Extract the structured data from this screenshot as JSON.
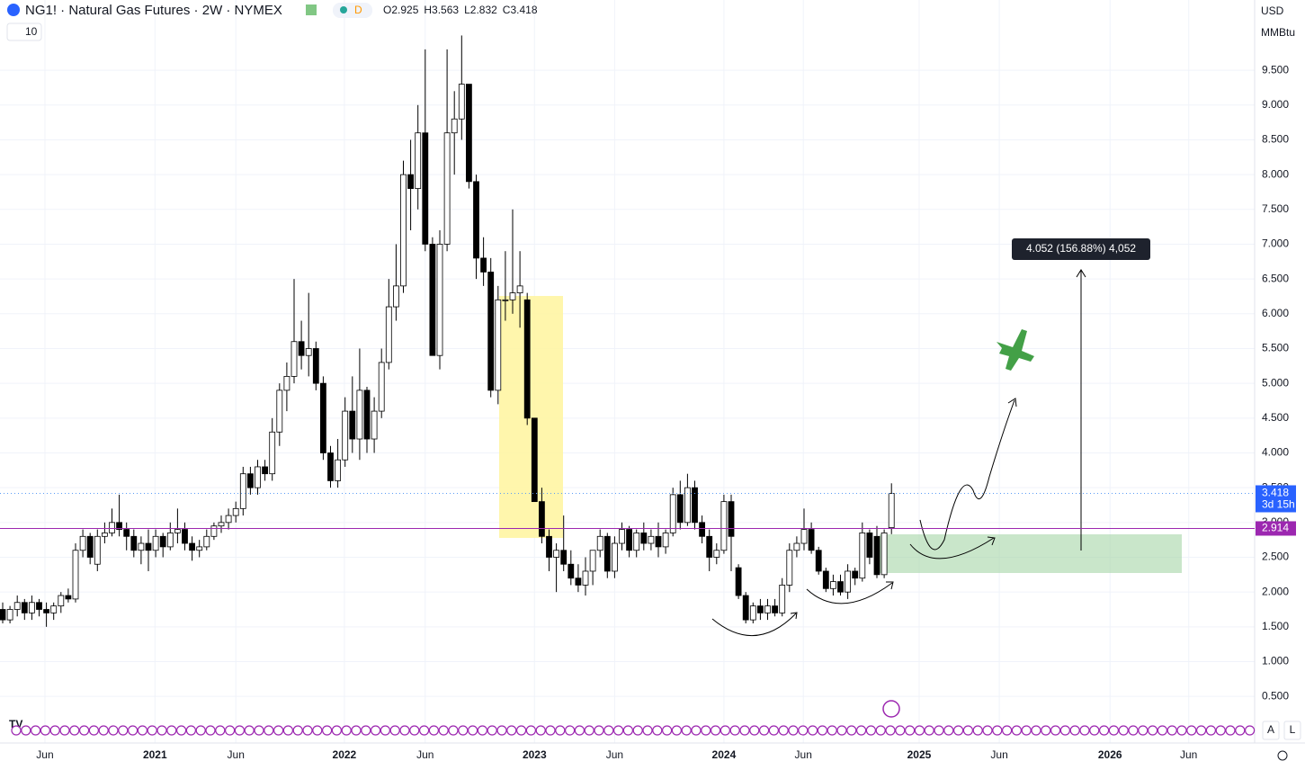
{
  "chart_data": {
    "type": "candlestick",
    "title": "NG1! · Natural Gas Futures · 2W · NYMEX",
    "badge": "D",
    "interval": "10",
    "ohlc_letters": [
      "O",
      "H",
      "L",
      "C"
    ],
    "currency": "USD",
    "unit": "MMBtu",
    "axis_buttons": [
      "A",
      "L"
    ],
    "countdown": "3d 15h",
    "hline": {
      "value": 2.914,
      "color": "#9c27b0"
    },
    "measure_label": "4.052 (156.88%) 4,052",
    "up_color": "#ffffff",
    "down_color": "#000000",
    "ohlc": [
      [
        1.75,
        1.85,
        1.55,
        1.6
      ],
      [
        1.6,
        1.8,
        1.55,
        1.75
      ],
      [
        1.75,
        1.95,
        1.65,
        1.85
      ],
      [
        1.85,
        1.9,
        1.6,
        1.7
      ],
      [
        1.7,
        1.95,
        1.6,
        1.85
      ],
      [
        1.85,
        1.9,
        1.65,
        1.75
      ],
      [
        1.75,
        1.85,
        1.5,
        1.7
      ],
      [
        1.7,
        1.85,
        1.6,
        1.8
      ],
      [
        1.8,
        2.0,
        1.7,
        1.95
      ],
      [
        1.95,
        2.05,
        1.85,
        1.9
      ],
      [
        1.9,
        2.7,
        1.85,
        2.6
      ],
      [
        2.6,
        2.9,
        2.5,
        2.8
      ],
      [
        2.8,
        2.85,
        2.4,
        2.5
      ],
      [
        2.4,
        2.9,
        2.3,
        2.8
      ],
      [
        2.8,
        3.0,
        2.7,
        2.85
      ],
      [
        2.85,
        3.2,
        2.8,
        3.0
      ],
      [
        3.0,
        3.4,
        2.8,
        2.9
      ],
      [
        2.9,
        3.0,
        2.6,
        2.8
      ],
      [
        2.8,
        2.9,
        2.5,
        2.6
      ],
      [
        2.6,
        2.8,
        2.4,
        2.7
      ],
      [
        2.7,
        2.9,
        2.3,
        2.6
      ],
      [
        2.6,
        2.9,
        2.5,
        2.8
      ],
      [
        2.8,
        2.85,
        2.5,
        2.65
      ],
      [
        2.65,
        3.0,
        2.6,
        2.85
      ],
      [
        2.85,
        3.2,
        2.7,
        2.9
      ],
      [
        2.9,
        3.0,
        2.6,
        2.7
      ],
      [
        2.7,
        2.8,
        2.45,
        2.6
      ],
      [
        2.6,
        2.75,
        2.5,
        2.65
      ],
      [
        2.65,
        2.9,
        2.6,
        2.8
      ],
      [
        2.8,
        3.0,
        2.75,
        2.95
      ],
      [
        2.95,
        3.1,
        2.85,
        3.0
      ],
      [
        3.0,
        3.2,
        2.9,
        3.1
      ],
      [
        3.1,
        3.3,
        3.0,
        3.2
      ],
      [
        3.2,
        3.8,
        3.1,
        3.7
      ],
      [
        3.7,
        3.8,
        3.4,
        3.5
      ],
      [
        3.5,
        3.9,
        3.4,
        3.8
      ],
      [
        3.8,
        3.9,
        3.6,
        3.7
      ],
      [
        3.7,
        4.5,
        3.6,
        4.3
      ],
      [
        4.3,
        5.0,
        4.1,
        4.9
      ],
      [
        4.9,
        5.3,
        4.6,
        5.1
      ],
      [
        5.1,
        6.5,
        5.0,
        5.6
      ],
      [
        5.6,
        5.9,
        5.2,
        5.4
      ],
      [
        5.4,
        6.3,
        5.1,
        5.5
      ],
      [
        5.5,
        5.6,
        4.9,
        5.0
      ],
      [
        5.0,
        5.1,
        3.9,
        4.0
      ],
      [
        4.0,
        4.1,
        3.5,
        3.6
      ],
      [
        3.6,
        4.2,
        3.5,
        3.9
      ],
      [
        3.9,
        4.8,
        3.8,
        4.6
      ],
      [
        4.6,
        5.1,
        4.0,
        4.2
      ],
      [
        4.2,
        5.5,
        3.9,
        4.9
      ],
      [
        4.9,
        4.95,
        4.0,
        4.2
      ],
      [
        4.2,
        4.8,
        4.0,
        4.6
      ],
      [
        4.6,
        5.5,
        4.5,
        5.3
      ],
      [
        5.3,
        6.5,
        5.2,
        6.1
      ],
      [
        6.1,
        7.0,
        5.9,
        6.4
      ],
      [
        6.4,
        8.2,
        6.3,
        8.0
      ],
      [
        8.0,
        8.5,
        7.2,
        7.8
      ],
      [
        7.8,
        9.0,
        7.5,
        8.6
      ],
      [
        8.6,
        9.8,
        6.9,
        7.0
      ],
      [
        7.0,
        7.1,
        5.4,
        5.4
      ],
      [
        5.4,
        7.2,
        5.2,
        7.0
      ],
      [
        7.0,
        9.8,
        6.9,
        8.6
      ],
      [
        8.6,
        9.2,
        8.0,
        8.8
      ],
      [
        8.8,
        10.0,
        8.5,
        9.3
      ],
      [
        9.3,
        9.3,
        7.8,
        7.9
      ],
      [
        7.9,
        8.0,
        6.5,
        6.8
      ],
      [
        6.8,
        7.1,
        6.4,
        6.6
      ],
      [
        6.6,
        6.8,
        4.8,
        4.9
      ],
      [
        4.9,
        6.4,
        4.7,
        6.2
      ],
      [
        6.2,
        6.9,
        5.9,
        6.2
      ],
      [
        6.2,
        7.5,
        6.0,
        6.3
      ],
      [
        6.3,
        6.9,
        5.8,
        6.4
      ],
      [
        6.2,
        6.3,
        4.4,
        4.5
      ],
      [
        4.5,
        4.5,
        3.3,
        3.3
      ],
      [
        3.3,
        3.5,
        2.7,
        2.8
      ],
      [
        2.8,
        2.9,
        2.3,
        2.5
      ],
      [
        2.5,
        2.7,
        2.0,
        2.6
      ],
      [
        2.6,
        3.1,
        2.3,
        2.4
      ],
      [
        2.4,
        2.6,
        2.1,
        2.2
      ],
      [
        2.2,
        2.4,
        2.0,
        2.1
      ],
      [
        2.1,
        2.5,
        1.95,
        2.3
      ],
      [
        2.3,
        2.6,
        2.1,
        2.6
      ],
      [
        2.6,
        2.9,
        2.5,
        2.8
      ],
      [
        2.8,
        2.85,
        2.2,
        2.3
      ],
      [
        2.3,
        2.8,
        2.2,
        2.7
      ],
      [
        2.7,
        3.0,
        2.6,
        2.9
      ],
      [
        2.9,
        2.95,
        2.5,
        2.6
      ],
      [
        2.6,
        2.9,
        2.5,
        2.85
      ],
      [
        2.85,
        3.0,
        2.6,
        2.7
      ],
      [
        2.7,
        2.9,
        2.6,
        2.8
      ],
      [
        2.8,
        3.0,
        2.5,
        2.65
      ],
      [
        2.65,
        2.9,
        2.55,
        2.85
      ],
      [
        2.85,
        3.5,
        2.8,
        3.4
      ],
      [
        3.4,
        3.6,
        2.9,
        3.0
      ],
      [
        3.0,
        3.7,
        2.95,
        3.5
      ],
      [
        3.5,
        3.6,
        2.9,
        3.0
      ],
      [
        3.0,
        3.1,
        2.7,
        2.8
      ],
      [
        2.8,
        2.9,
        2.3,
        2.5
      ],
      [
        2.5,
        2.7,
        2.4,
        2.6
      ],
      [
        2.6,
        3.4,
        2.55,
        3.3
      ],
      [
        3.3,
        3.4,
        2.3,
        2.8
      ],
      [
        2.35,
        2.4,
        1.9,
        1.95
      ],
      [
        1.95,
        2.0,
        1.55,
        1.6
      ],
      [
        1.6,
        1.85,
        1.55,
        1.8
      ],
      [
        1.8,
        1.9,
        1.6,
        1.7
      ],
      [
        1.7,
        1.9,
        1.6,
        1.8
      ],
      [
        1.8,
        1.9,
        1.65,
        1.7
      ],
      [
        1.7,
        2.2,
        1.65,
        2.1
      ],
      [
        2.1,
        2.7,
        2.0,
        2.6
      ],
      [
        2.6,
        2.8,
        2.5,
        2.7
      ],
      [
        2.7,
        3.2,
        2.6,
        2.9
      ],
      [
        2.9,
        3.0,
        2.55,
        2.6
      ],
      [
        2.6,
        2.65,
        2.25,
        2.3
      ],
      [
        2.3,
        2.35,
        2.0,
        2.05
      ],
      [
        2.05,
        2.25,
        1.95,
        2.15
      ],
      [
        2.15,
        2.25,
        1.95,
        2.0
      ],
      [
        2.0,
        2.4,
        1.9,
        2.3
      ],
      [
        2.3,
        2.35,
        2.1,
        2.2
      ],
      [
        2.2,
        3.0,
        2.15,
        2.85
      ],
      [
        2.85,
        2.9,
        2.4,
        2.5
      ],
      [
        2.8,
        2.95,
        2.2,
        2.25
      ],
      [
        2.25,
        2.9,
        2.2,
        2.85
      ],
      [
        2.925,
        3.563,
        2.832,
        3.418
      ]
    ],
    "xlim": [
      -0.37,
      171.85
    ],
    "xticks": [
      {
        "value": 5.8,
        "label": "Jun"
      },
      {
        "value": 20.9,
        "label": "2021"
      },
      {
        "value": 32.0,
        "label": "Jun"
      },
      {
        "value": 46.9,
        "label": "2022"
      },
      {
        "value": 58.0,
        "label": "Jun"
      },
      {
        "value": 73.0,
        "label": "2023"
      },
      {
        "value": 84.0,
        "label": "Jun"
      },
      {
        "value": 99.0,
        "label": "2024"
      },
      {
        "value": 109.9,
        "label": "Jun"
      },
      {
        "value": 125.8,
        "label": "2025"
      },
      {
        "value": 136.8,
        "label": "Jun"
      },
      {
        "value": 152.0,
        "label": "2026"
      },
      {
        "value": 162.8,
        "label": "Jun"
      }
    ],
    "ylim": [
      -0.17,
      10.51
    ],
    "yticks": [
      {
        "value": 0.5,
        "label": "0.500"
      },
      {
        "value": 1,
        "label": "1.000"
      },
      {
        "value": 1.5,
        "label": "1.500"
      },
      {
        "value": 2,
        "label": "2.000"
      },
      {
        "value": 2.5,
        "label": "2.500"
      },
      {
        "value": 3,
        "label": "3.000"
      },
      {
        "value": 3.5,
        "label": "3.500"
      },
      {
        "value": 4,
        "label": "4.000"
      },
      {
        "value": 4.5,
        "label": "4.500"
      },
      {
        "value": 5,
        "label": "5.000"
      },
      {
        "value": 5.5,
        "label": "5.500"
      },
      {
        "value": 6,
        "label": "6.000"
      },
      {
        "value": 6.5,
        "label": "6.500"
      },
      {
        "value": 7,
        "label": "7.000"
      },
      {
        "value": 7.5,
        "label": "7.500"
      },
      {
        "value": 8,
        "label": "8.000"
      },
      {
        "value": 8.5,
        "label": "8.500"
      },
      {
        "value": 9,
        "label": "9.000"
      },
      {
        "value": 9.5,
        "label": "9.500"
      }
    ],
    "grid": true
  }
}
